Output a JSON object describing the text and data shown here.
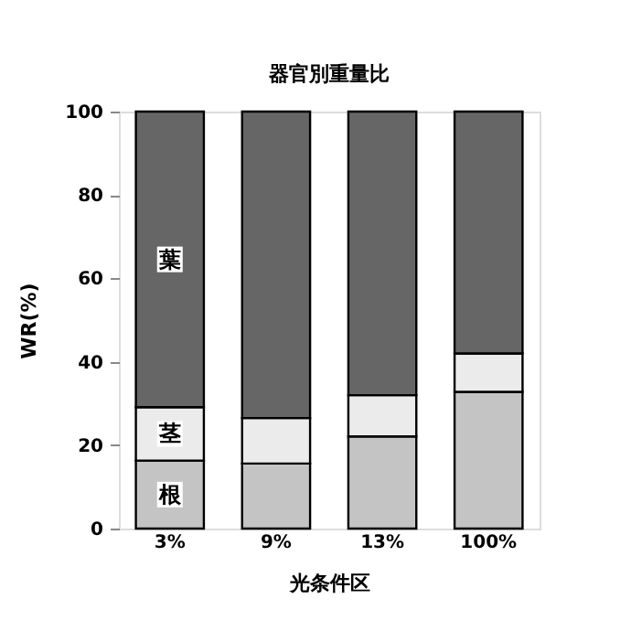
{
  "chart_data": {
    "type": "bar",
    "title": "器官別重量比",
    "xlabel": "光条件区",
    "ylabel": "WR(%)",
    "categories": [
      "3%",
      "9%",
      "13%",
      "100%"
    ],
    "stacked": true,
    "series": [
      {
        "name": "根",
        "color": "#c4c4c4",
        "values": [
          16.3,
          15.6,
          22.1,
          32.8
        ]
      },
      {
        "name": "茎",
        "color": "#ebebeb",
        "values": [
          12.8,
          10.9,
          9.9,
          9.2
        ]
      },
      {
        "name": "葉",
        "color": "#666666",
        "values": [
          70.9,
          73.5,
          68.0,
          58.0
        ]
      }
    ],
    "ylim": [
      0,
      100
    ],
    "yticks": [
      0,
      20,
      40,
      60,
      80,
      100
    ],
    "grid": false,
    "legend": false
  }
}
